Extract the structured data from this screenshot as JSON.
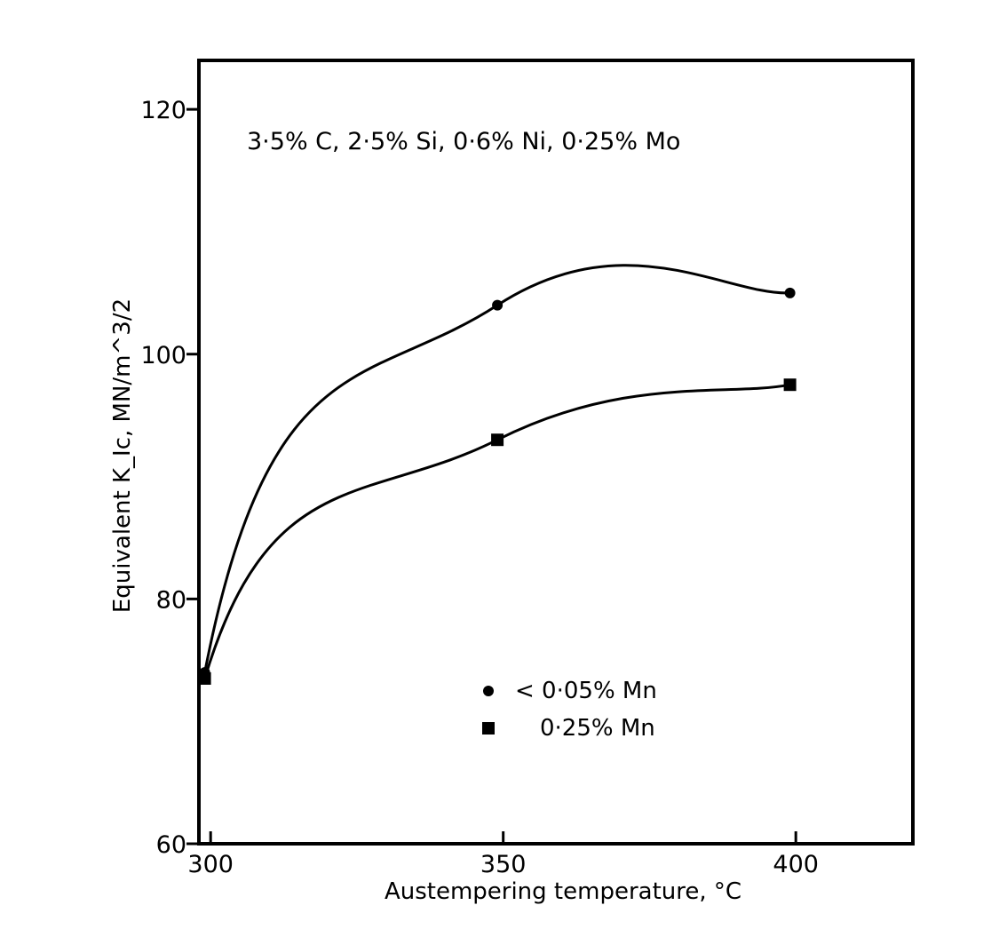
{
  "chart_data": {
    "type": "line",
    "title": "",
    "annotation": "3·5% C, 2·5% Si, 0·6% Ni, 0·25% Mo",
    "xlabel": "Austempering temperature, °C",
    "ylabel": "Equivalent K_Ic,   MN/m^3/2",
    "xlim": [
      298,
      420
    ],
    "ylim": [
      60,
      124
    ],
    "x_ticks": [
      300,
      350,
      400
    ],
    "x_tick_labels": [
      "300",
      "350",
      "400"
    ],
    "y_ticks": [
      60,
      80,
      100,
      120
    ],
    "y_tick_labels": [
      "60",
      "80",
      "100",
      "120"
    ],
    "grid": false,
    "legend_position": "bottom-center",
    "series": [
      {
        "name": "< 0·05% Mn",
        "marker": "circle",
        "x": [
          299,
          349,
          399
        ],
        "y": [
          74,
          104,
          105
        ]
      },
      {
        "name": "0·25% Mn",
        "marker": "square",
        "x": [
          299,
          349,
          399
        ],
        "y": [
          73.5,
          93,
          97.5
        ]
      }
    ]
  }
}
